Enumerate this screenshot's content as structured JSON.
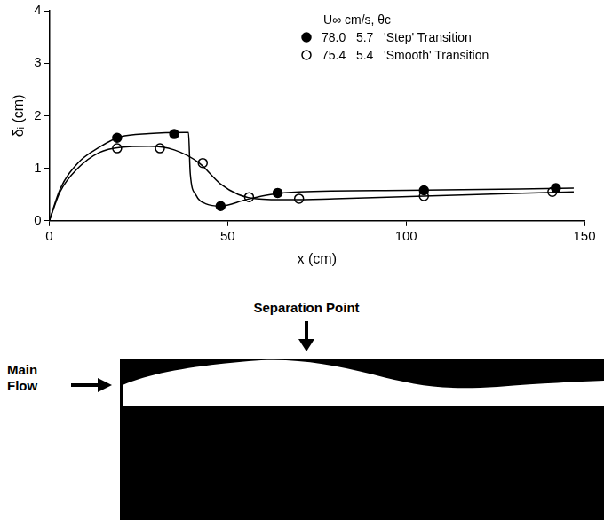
{
  "chart_data": {
    "type": "line",
    "y_label": "δᵢ (cm)",
    "x_label": "x (cm)",
    "xlim": [
      0,
      150
    ],
    "xticks": [
      0,
      50,
      100,
      150
    ],
    "ylim": [
      0,
      4
    ],
    "yticks": [
      0,
      1,
      2,
      3,
      4
    ],
    "grid": false,
    "legend": "upper right",
    "legend_title": "U∞ cm/s, θc",
    "series": [
      {
        "name": "78.0   5.7   'Step' Transition",
        "color": "#000000",
        "marker": "circle",
        "x": [
          19,
          35,
          48,
          64,
          105,
          142
        ],
        "values": [
          1.58,
          1.65,
          0.28,
          0.53,
          0.58,
          0.62
        ],
        "curve_x": [
          0,
          3,
          8,
          14,
          20,
          28,
          38,
          39,
          39.5,
          41,
          44,
          48,
          55,
          62,
          70,
          100,
          147
        ],
        "curve_y": [
          0,
          0.6,
          1.1,
          1.4,
          1.6,
          1.66,
          1.68,
          1.68,
          0.9,
          0.5,
          0.32,
          0.28,
          0.4,
          0.5,
          0.55,
          0.58,
          0.62
        ]
      },
      {
        "name": "75.4   5.4   'Smooth' Transition",
        "color": "#000000",
        "marker": "open circle",
        "x": [
          19,
          31,
          43,
          56,
          70,
          105,
          141
        ],
        "values": [
          1.38,
          1.38,
          1.1,
          0.45,
          0.42,
          0.47,
          0.55
        ],
        "curve_x": [
          0,
          3,
          8,
          14,
          20,
          28,
          35,
          42,
          48,
          53,
          58,
          68,
          80,
          105,
          147
        ],
        "curve_y": [
          0,
          0.55,
          1.0,
          1.3,
          1.4,
          1.42,
          1.35,
          1.1,
          0.7,
          0.5,
          0.42,
          0.4,
          0.42,
          0.47,
          0.55
        ]
      }
    ]
  },
  "photo": {
    "separation_point": "Separation Point",
    "main_flow": "Main Flow"
  }
}
